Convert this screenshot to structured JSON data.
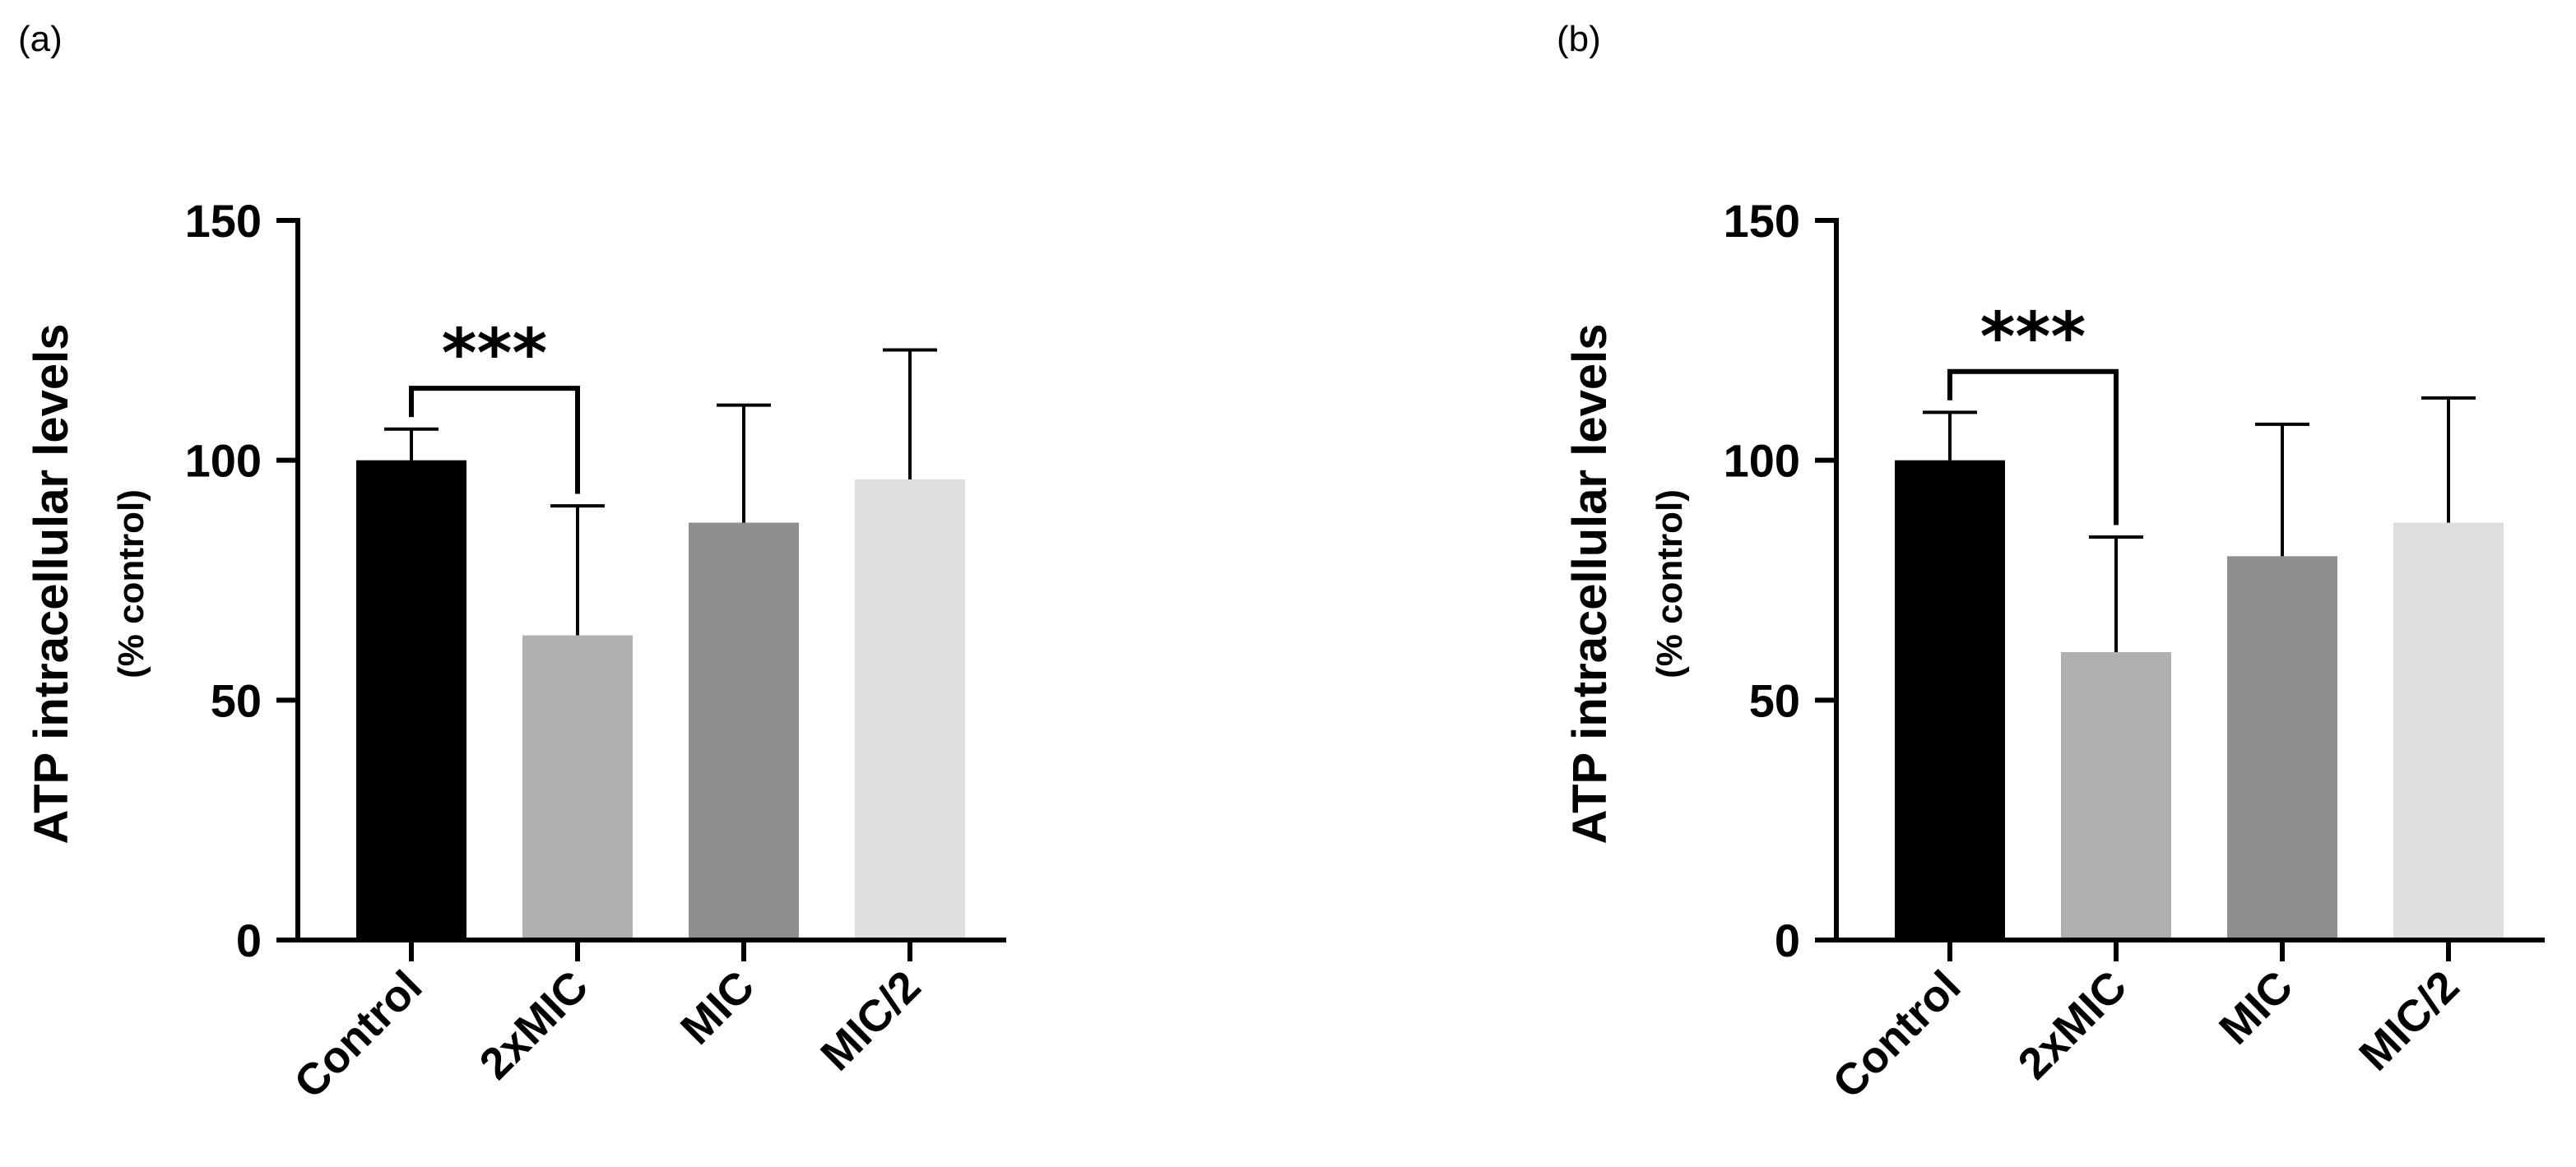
{
  "chart_data": [
    {
      "type": "bar",
      "panel_label": "(a)",
      "categories": [
        "Control",
        "2xMIC",
        "MIC",
        "MIC/2"
      ],
      "values": [
        100,
        63.5,
        87,
        96
      ],
      "error_upper": [
        106.5,
        90.5,
        111.5,
        123
      ],
      "colors": [
        "#000000",
        "#b0b0b0",
        "#8f8f8f",
        "#dedede"
      ],
      "ylabel": "ATP intracellular levels",
      "ylabel_sub": "(% control)",
      "xlabel": "",
      "ylim": [
        0,
        150
      ],
      "yticks": [
        "0",
        "50",
        "100",
        "150"
      ],
      "significance": {
        "from": "Control",
        "to": "2xMIC",
        "label": "***"
      }
    },
    {
      "type": "bar",
      "panel_label": "(b)",
      "categories": [
        "Control",
        "2xMIC",
        "MIC",
        "MIC/2"
      ],
      "values": [
        100,
        60,
        80,
        87
      ],
      "error_upper": [
        110,
        84,
        107.5,
        113
      ],
      "colors": [
        "#000000",
        "#b0b0b0",
        "#8f8f8f",
        "#dedede"
      ],
      "ylabel": "ATP intracellular levels",
      "ylabel_sub": "(% control)",
      "xlabel": "",
      "ylim": [
        0,
        150
      ],
      "yticks": [
        "0",
        "50",
        "100",
        "150"
      ],
      "significance": {
        "from": "Control",
        "to": "2xMIC",
        "label": "***"
      }
    }
  ]
}
